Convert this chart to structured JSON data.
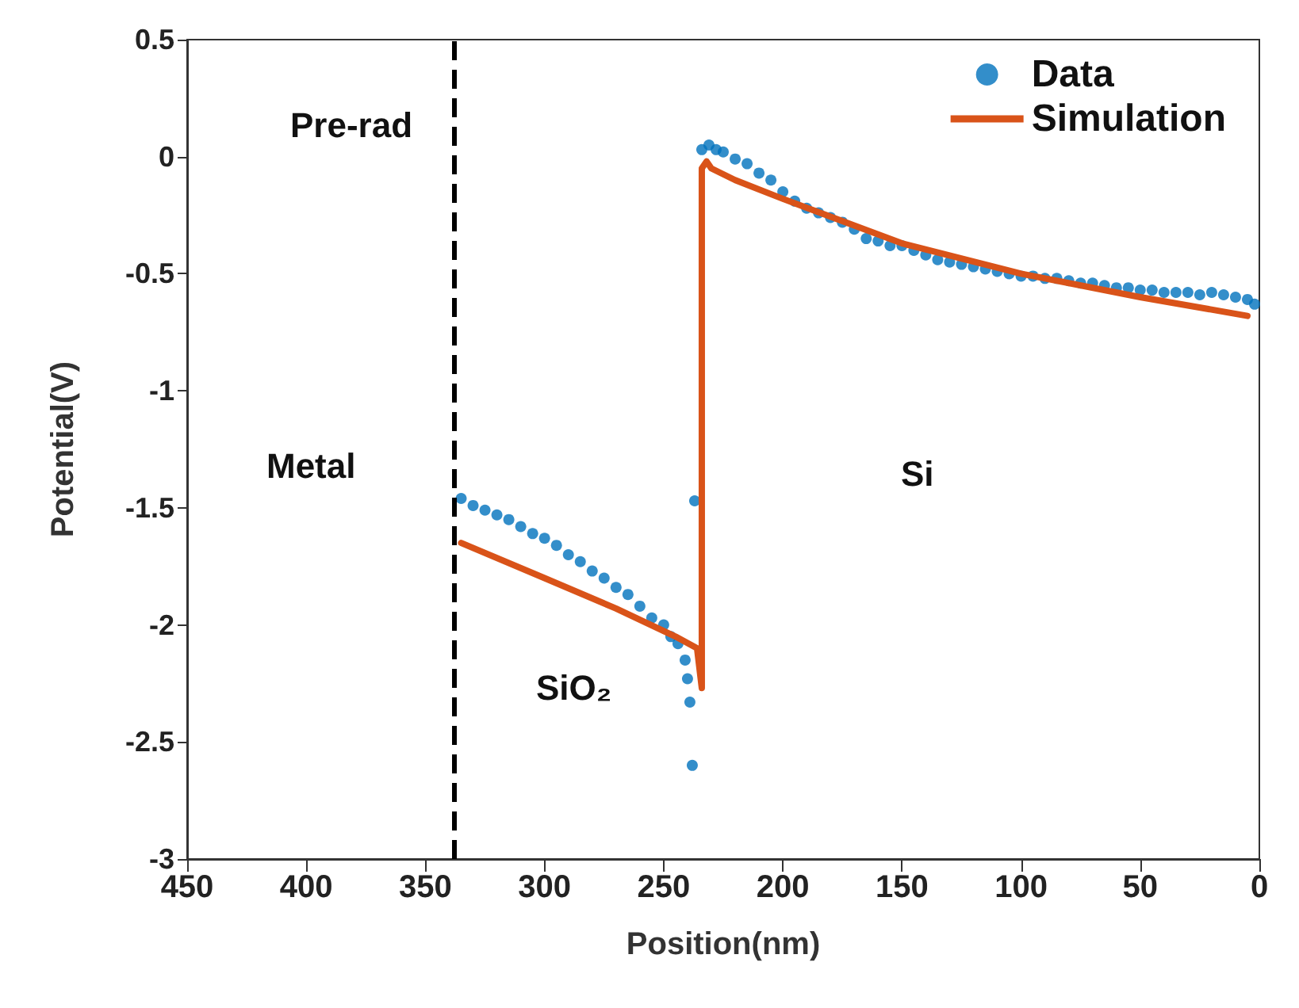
{
  "chart_data": {
    "type": "scatter",
    "xlabel": "Position(nm)",
    "ylabel": "Potential(V)",
    "xlim": [
      450,
      0
    ],
    "xticks": [
      450,
      400,
      350,
      300,
      250,
      200,
      150,
      100,
      50,
      0
    ],
    "ylim": [
      -3,
      0.5
    ],
    "yticks": [
      -3,
      -2.5,
      -2,
      -1.5,
      -1,
      -0.5,
      0,
      0.5
    ],
    "grid": false,
    "legend": "top right",
    "annotations": [
      "Pre-rad",
      "Metal",
      "SiO₂",
      "Si"
    ],
    "ref_lines": [
      {
        "axis": "x",
        "value": 338,
        "label": null,
        "color": "#000000",
        "line_style": "dashed"
      }
    ],
    "series": [
      {
        "name": "Data",
        "marker": "circle",
        "color": "#0072bd",
        "x": [
          335,
          330,
          325,
          320,
          315,
          310,
          305,
          300,
          295,
          290,
          285,
          280,
          275,
          270,
          265,
          260,
          255,
          250,
          247,
          244,
          241,
          240,
          239,
          238,
          237,
          234,
          231,
          228,
          225,
          220,
          215,
          210,
          205,
          200,
          195,
          190,
          185,
          180,
          175,
          170,
          165,
          160,
          155,
          150,
          145,
          140,
          135,
          130,
          125,
          120,
          115,
          110,
          105,
          100,
          95,
          90,
          85,
          80,
          75,
          70,
          65,
          60,
          55,
          50,
          45,
          40,
          35,
          30,
          25,
          20,
          15,
          10,
          5,
          2
        ],
        "values": [
          -1.46,
          -1.49,
          -1.51,
          -1.53,
          -1.55,
          -1.58,
          -1.61,
          -1.63,
          -1.66,
          -1.7,
          -1.73,
          -1.77,
          -1.8,
          -1.84,
          -1.87,
          -1.92,
          -1.97,
          -2,
          -2.05,
          -2.08,
          -2.15,
          -2.23,
          -2.33,
          -2.6,
          -1.47,
          0.03,
          0.05,
          0.03,
          0.02,
          -0.01,
          -0.03,
          -0.07,
          -0.1,
          -0.15,
          -0.19,
          -0.22,
          -0.24,
          -0.26,
          -0.28,
          -0.31,
          -0.35,
          -0.36,
          -0.38,
          -0.38,
          -0.4,
          -0.42,
          -0.44,
          -0.45,
          -0.46,
          -0.47,
          -0.48,
          -0.49,
          -0.5,
          -0.51,
          -0.51,
          -0.52,
          -0.52,
          -0.53,
          -0.54,
          -0.54,
          -0.55,
          -0.56,
          -0.56,
          -0.57,
          -0.57,
          -0.58,
          -0.58,
          -0.58,
          -0.59,
          -0.58,
          -0.59,
          -0.6,
          -0.61,
          -0.63
        ]
      },
      {
        "name": "Simulation",
        "type": "line",
        "marker": "none",
        "line_style": "solid",
        "color": "#d95319",
        "x": [
          335,
          300,
          270,
          245,
          236,
          234,
          234,
          232,
          230,
          220,
          200,
          150,
          100,
          50,
          5
        ],
        "values": [
          -1.65,
          -1.8,
          -1.93,
          -2.05,
          -2.1,
          -2.27,
          -0.05,
          -0.02,
          -0.05,
          -0.1,
          -0.18,
          -0.37,
          -0.5,
          -0.6,
          -0.68
        ]
      }
    ]
  }
}
